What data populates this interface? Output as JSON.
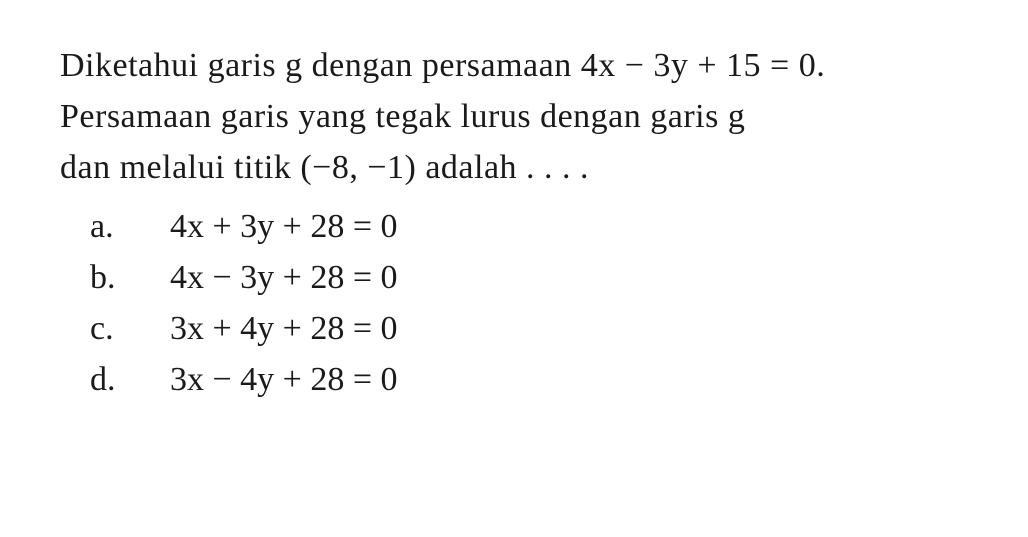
{
  "question": {
    "line1": "Diketahui garis g dengan persamaan 4x − 3y + 15 = 0.",
    "line2": "Persamaan garis yang tegak lurus dengan garis g",
    "line3": "dan melalui titik (−8, −1) adalah . . . ."
  },
  "options": [
    {
      "letter": "a.",
      "text": "4x + 3y + 28 = 0"
    },
    {
      "letter": "b.",
      "text": "4x − 3y + 28 = 0"
    },
    {
      "letter": "c.",
      "text": "3x + 4y + 28 = 0"
    },
    {
      "letter": "d.",
      "text": "3x − 4y + 28 = 0"
    }
  ],
  "style": {
    "background_color": "#ffffff",
    "text_color": "#1a1a1a",
    "font_family": "Times New Roman",
    "question_fontsize": 34,
    "option_fontsize": 34,
    "line_height": 1.5
  }
}
